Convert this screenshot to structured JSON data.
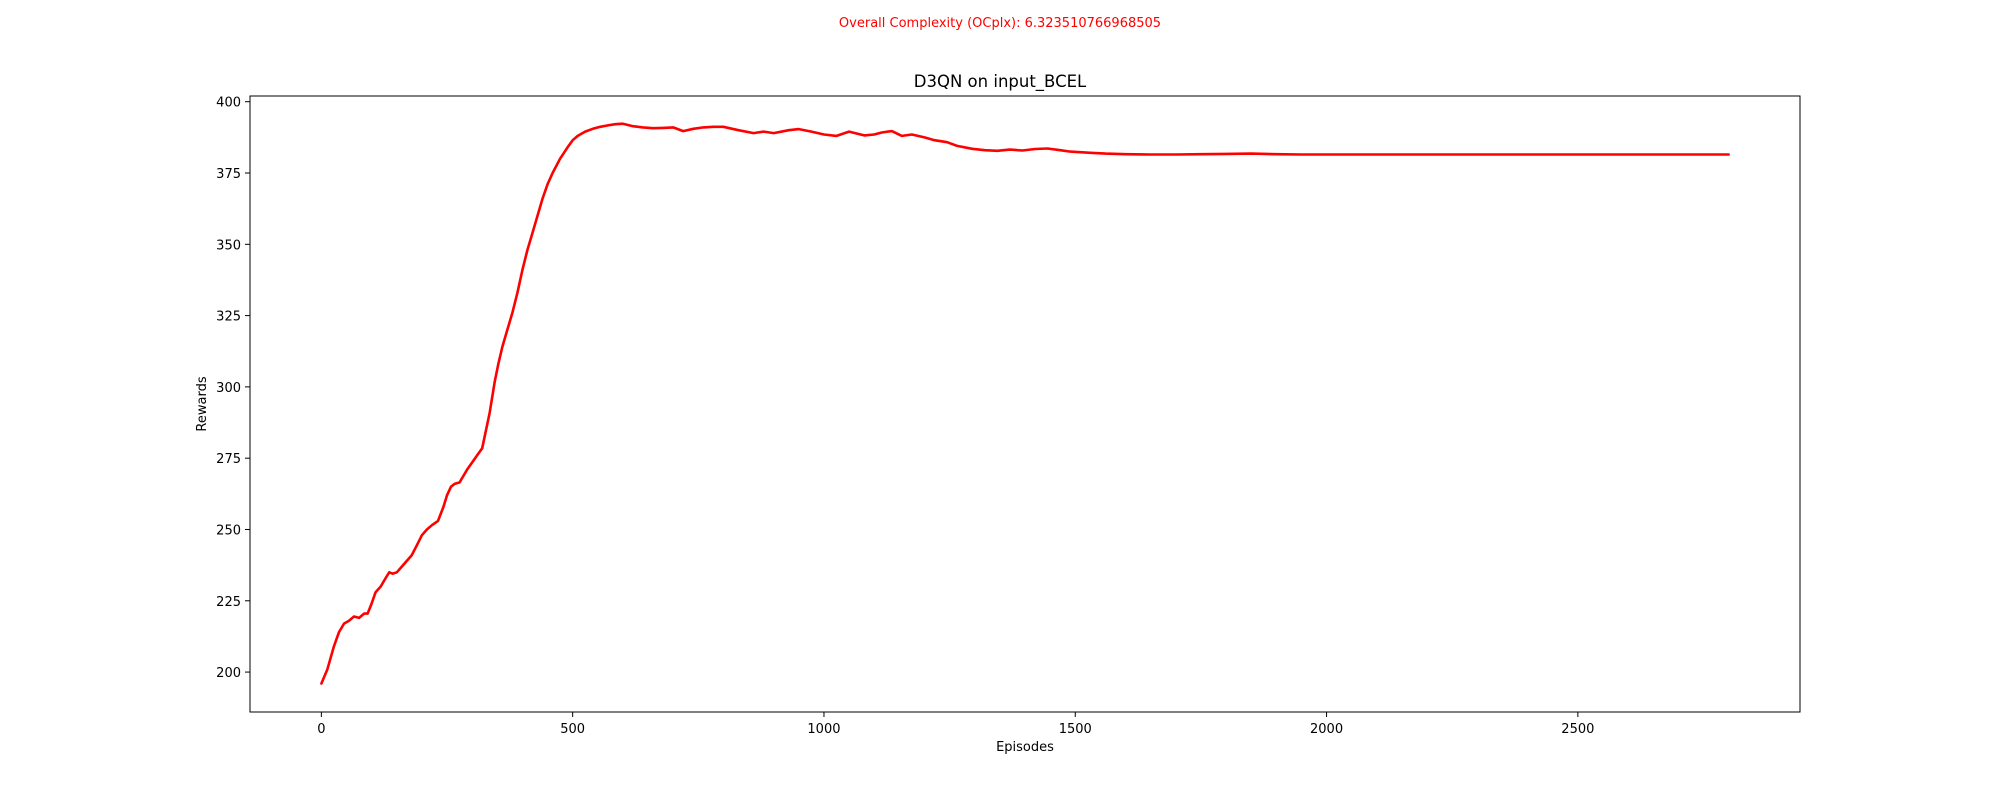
{
  "chart_data": {
    "type": "line",
    "suptitle": "Overall Complexity (OCplx): 6.323510766968505",
    "title": "D3QN on input_BCEL",
    "xlabel": "Episodes",
    "ylabel": "Rewards",
    "xlim": [
      -142,
      2942
    ],
    "ylim": [
      186,
      402
    ],
    "xticks": [
      0,
      500,
      1000,
      1500,
      2000,
      2500
    ],
    "yticks": [
      200,
      225,
      250,
      275,
      300,
      325,
      350,
      375,
      400
    ],
    "grid": false,
    "colors": {
      "line": "#ff0000",
      "suptitle": "#ff0000",
      "axes": "#000000"
    },
    "series": [
      {
        "x": [
          0,
          12,
          25,
          35,
          45,
          55,
          65,
          75,
          85,
          92,
          100,
          108,
          118,
          128,
          135,
          142,
          150,
          160,
          170,
          180,
          190,
          200,
          210,
          220,
          232,
          243,
          250,
          258,
          265,
          275,
          290,
          300,
          310,
          320,
          335,
          345,
          352,
          360,
          370,
          380,
          390,
          400,
          410,
          420,
          430,
          440,
          450,
          460,
          475,
          490,
          500,
          510,
          525,
          540,
          555,
          570,
          585,
          600,
          620,
          640,
          660,
          680,
          700,
          720,
          740,
          760,
          780,
          800,
          830,
          860,
          880,
          900,
          930,
          950,
          975,
          1000,
          1025,
          1050,
          1080,
          1100,
          1115,
          1135,
          1155,
          1175,
          1200,
          1220,
          1245,
          1265,
          1295,
          1320,
          1345,
          1370,
          1395,
          1420,
          1445,
          1470,
          1490,
          1510,
          1530,
          1560,
          1600,
          1650,
          1700,
          1750,
          1800,
          1850,
          1880,
          1900,
          1950,
          2000,
          2050,
          2100,
          2200,
          2300,
          2400,
          2500,
          2600,
          2700,
          2800
        ],
        "y": [
          196,
          201,
          209,
          214,
          217,
          218,
          219.5,
          219,
          220.5,
          220.5,
          224,
          228,
          230,
          233,
          235,
          234.5,
          235,
          237,
          239,
          241,
          244.5,
          248,
          250,
          251.5,
          253,
          258,
          262,
          265,
          266,
          266.5,
          271,
          273.5,
          276,
          278.5,
          291,
          302,
          308,
          314,
          320,
          326,
          333,
          341,
          348,
          354,
          360,
          366,
          371,
          375,
          380,
          384,
          386.5,
          388,
          389.5,
          390.5,
          391.2,
          391.7,
          392.1,
          392.3,
          391.4,
          391,
          390.7,
          390.8,
          391,
          389.7,
          390.5,
          391,
          391.2,
          391.2,
          390,
          389,
          389.5,
          389,
          390,
          390.4,
          389.5,
          388.5,
          388,
          389.5,
          388.2,
          388.5,
          389.2,
          389.7,
          388,
          388.5,
          387.5,
          386.5,
          385.8,
          384.5,
          383.5,
          383,
          382.8,
          383.2,
          382.9,
          383.4,
          383.6,
          383,
          382.5,
          382.3,
          382.1,
          381.8,
          381.6,
          381.5,
          381.5,
          381.6,
          381.7,
          381.8,
          381.7,
          381.6,
          381.5,
          381.5,
          381.5,
          381.5,
          381.5,
          381.5,
          381.5,
          381.5,
          381.5,
          381.5,
          381.5
        ]
      }
    ]
  }
}
